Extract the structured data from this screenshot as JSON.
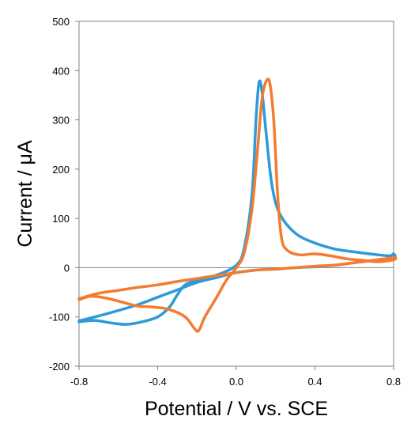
{
  "chart_data": {
    "type": "line",
    "title": "",
    "xlabel": "Potential / V vs. SCE",
    "ylabel": "Current / μA",
    "xlim": [
      -0.8,
      0.8
    ],
    "ylim": [
      -200,
      500
    ],
    "x_ticks": [
      "-0.8",
      "-0.4",
      "0.0",
      "0.4",
      "0.8"
    ],
    "y_ticks": [
      "500",
      "400",
      "300",
      "200",
      "100",
      "0",
      "-100",
      "-200"
    ],
    "x_tick_values": [
      -0.8,
      -0.4,
      0.0,
      0.4,
      0.8
    ],
    "y_tick_values": [
      500,
      400,
      300,
      200,
      100,
      0,
      -100,
      -200
    ],
    "grid": false,
    "legend": "none",
    "series": [
      {
        "color": "#2E9BD6",
        "points": [
          [
            -0.8,
            -110
          ],
          [
            -0.72,
            -107
          ],
          [
            -0.64,
            -112
          ],
          [
            -0.56,
            -115
          ],
          [
            -0.48,
            -110
          ],
          [
            -0.4,
            -100
          ],
          [
            -0.34,
            -80
          ],
          [
            -0.3,
            -55
          ],
          [
            -0.26,
            -35
          ],
          [
            -0.2,
            -25
          ],
          [
            -0.1,
            -15
          ],
          [
            0.0,
            5
          ],
          [
            0.04,
            40
          ],
          [
            0.08,
            150
          ],
          [
            0.1,
            300
          ],
          [
            0.115,
            375
          ],
          [
            0.13,
            360
          ],
          [
            0.15,
            280
          ],
          [
            0.18,
            170
          ],
          [
            0.22,
            110
          ],
          [
            0.3,
            70
          ],
          [
            0.4,
            50
          ],
          [
            0.5,
            38
          ],
          [
            0.6,
            32
          ],
          [
            0.7,
            27
          ],
          [
            0.78,
            24
          ],
          [
            0.8,
            28
          ],
          [
            0.8,
            20
          ],
          [
            0.7,
            15
          ],
          [
            0.6,
            10
          ],
          [
            0.5,
            5
          ],
          [
            0.4,
            2
          ],
          [
            0.3,
            0
          ],
          [
            0.2,
            -3
          ],
          [
            0.1,
            -5
          ],
          [
            0.0,
            -10
          ],
          [
            -0.1,
            -20
          ],
          [
            -0.2,
            -30
          ],
          [
            -0.3,
            -45
          ],
          [
            -0.4,
            -60
          ],
          [
            -0.5,
            -75
          ],
          [
            -0.6,
            -87
          ],
          [
            -0.7,
            -98
          ],
          [
            -0.8,
            -108
          ]
        ]
      },
      {
        "color": "#F47B30",
        "points": [
          [
            -0.8,
            -65
          ],
          [
            -0.74,
            -58
          ],
          [
            -0.66,
            -62
          ],
          [
            -0.58,
            -70
          ],
          [
            -0.5,
            -78
          ],
          [
            -0.42,
            -80
          ],
          [
            -0.34,
            -85
          ],
          [
            -0.26,
            -100
          ],
          [
            -0.21,
            -125
          ],
          [
            -0.19,
            -127
          ],
          [
            -0.16,
            -100
          ],
          [
            -0.1,
            -60
          ],
          [
            -0.05,
            -25
          ],
          [
            0.0,
            0
          ],
          [
            0.04,
            30
          ],
          [
            0.08,
            120
          ],
          [
            0.11,
            250
          ],
          [
            0.13,
            340
          ],
          [
            0.15,
            377
          ],
          [
            0.17,
            375
          ],
          [
            0.19,
            300
          ],
          [
            0.21,
            150
          ],
          [
            0.23,
            60
          ],
          [
            0.26,
            35
          ],
          [
            0.32,
            26
          ],
          [
            0.4,
            28
          ],
          [
            0.48,
            24
          ],
          [
            0.56,
            18
          ],
          [
            0.64,
            15
          ],
          [
            0.72,
            12
          ],
          [
            0.8,
            16
          ],
          [
            0.8,
            20
          ],
          [
            0.7,
            15
          ],
          [
            0.6,
            10
          ],
          [
            0.5,
            5
          ],
          [
            0.4,
            3
          ],
          [
            0.3,
            0
          ],
          [
            0.2,
            -3
          ],
          [
            0.1,
            -5
          ],
          [
            0.0,
            -10
          ],
          [
            -0.1,
            -16
          ],
          [
            -0.2,
            -22
          ],
          [
            -0.3,
            -28
          ],
          [
            -0.4,
            -35
          ],
          [
            -0.5,
            -40
          ],
          [
            -0.6,
            -46
          ],
          [
            -0.7,
            -52
          ],
          [
            -0.8,
            -63
          ]
        ]
      }
    ]
  }
}
